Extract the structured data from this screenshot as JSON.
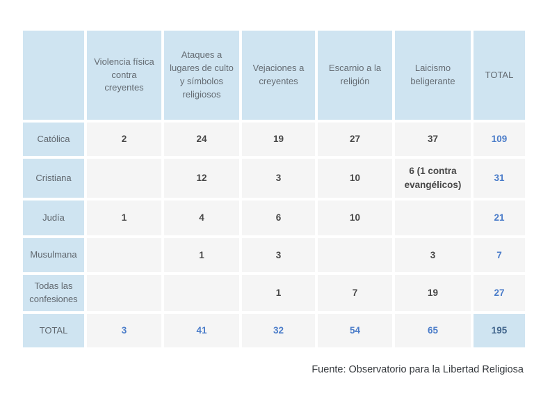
{
  "table": {
    "columns": [
      "Violencia física contra creyentes",
      "Ataques a lugares de culto y símbolos religiosos",
      "Vejaciones a creyentes",
      "Escarnio a la religión",
      "Laicismo beligerante",
      "TOTAL"
    ],
    "rows": [
      {
        "label": "Católica",
        "cells": [
          "2",
          "24",
          "19",
          "27",
          "37",
          "109"
        ]
      },
      {
        "label": "Cristiana",
        "cells": [
          "",
          "12",
          "3",
          "10",
          "6 (1 contra evangélicos)",
          "31"
        ]
      },
      {
        "label": "Judía",
        "cells": [
          "1",
          "4",
          "6",
          "10",
          "",
          "21"
        ]
      },
      {
        "label": "Musulmana",
        "cells": [
          "",
          "1",
          "3",
          "",
          "3",
          "7"
        ]
      },
      {
        "label": "Todas las confesiones",
        "cells": [
          "",
          "",
          "1",
          "7",
          "19",
          "27"
        ]
      },
      {
        "label": "TOTAL",
        "cells": [
          "3",
          "41",
          "32",
          "54",
          "65",
          "195"
        ]
      }
    ]
  },
  "footer": {
    "source": "Fuente: Observatorio para la Libertad Religiosa"
  },
  "colors": {
    "header_bg": "#cfe4f1",
    "cell_bg": "#f5f5f5",
    "accent_blue": "#4a7cc9",
    "grand_total_text": "#41658c",
    "header_text": "#646b72",
    "number_text": "#474747",
    "footer_text": "#33373b"
  },
  "chart_data": {
    "type": "table",
    "columns": [
      "",
      "Violencia física contra creyentes",
      "Ataques a lugares de culto y símbolos religiosos",
      "Vejaciones a creyentes",
      "Escarnio a la religión",
      "Laicismo beligerante",
      "TOTAL"
    ],
    "rows": [
      [
        "Católica",
        2,
        24,
        19,
        27,
        37,
        109
      ],
      [
        "Cristiana",
        null,
        12,
        3,
        10,
        "6 (1 contra evangélicos)",
        31
      ],
      [
        "Judía",
        1,
        4,
        6,
        10,
        null,
        21
      ],
      [
        "Musulmana",
        null,
        1,
        3,
        null,
        3,
        7
      ],
      [
        "Todas las confesiones",
        null,
        null,
        1,
        7,
        19,
        27
      ],
      [
        "TOTAL",
        3,
        41,
        32,
        54,
        65,
        195
      ]
    ],
    "source": "Fuente: Observatorio para la Libertad Religiosa"
  }
}
